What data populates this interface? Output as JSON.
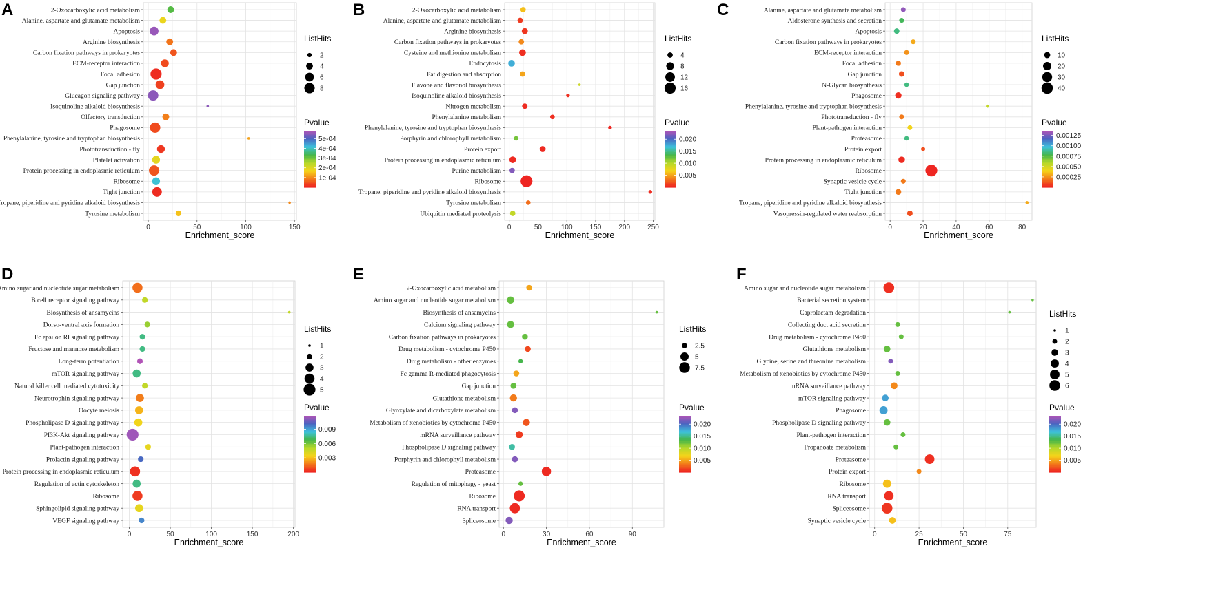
{
  "figure": {
    "background": "#ffffff",
    "grid_color": "#e3e3e3",
    "frame_color": "#d0d0d0"
  },
  "colormap": [
    "#ee2222",
    "#f2771a",
    "#f6d41a",
    "#b7d82a",
    "#45b649",
    "#3ec2dd",
    "#4a63c0",
    "#b154b7"
  ],
  "chart_data": [
    {
      "panel": "A",
      "type": "scatter",
      "xlabel": "Enrichment_score",
      "xlim": [
        -5,
        152
      ],
      "xticks": [
        0,
        50,
        100,
        150
      ],
      "size_title": "ListHits",
      "size_breaks": [
        2,
        4,
        6,
        8
      ],
      "size_range": [
        1,
        10
      ],
      "color_title": "Pvalue",
      "color_ticks": [
        "5e-04",
        "4e-04",
        "3e-04",
        "2e-04",
        "1e-04"
      ],
      "color_tick_vals": [
        0.0005,
        0.0004,
        0.0003,
        0.0002,
        0.0001
      ],
      "color_range": [
        0,
        0.00058
      ],
      "categories": [
        "2-Oxocarboxylic acid metabolism",
        "Alanine, aspartate and glutamate metabolism",
        "Apoptosis",
        "Arginine biosynthesis",
        "Carbon fixation pathways in prokaryotes",
        "ECM-receptor interaction",
        "Focal adhesion",
        "Gap junction",
        "Glucagon signaling pathway",
        "Isoquinoline alkaloid biosynthesis",
        "Olfactory transduction",
        "Phagosome",
        "Phenylalanine, tyrosine and tryptophan biosynthesis",
        "Phototransduction - fly",
        "Platelet activation",
        "Protein processing in endoplasmic reticulum",
        "Ribosome",
        "Tight junction",
        "Tropane, piperidine and pyridine alkaloid biosynthesis",
        "Tyrosine metabolism"
      ],
      "x": [
        23,
        15,
        6,
        22,
        26,
        17,
        8,
        12,
        5,
        61,
        18,
        7,
        103,
        13,
        8,
        6,
        8,
        9,
        145,
        31
      ],
      "size": [
        4,
        4,
        6,
        4,
        4,
        5,
        9,
        6,
        8,
        1,
        4,
        8,
        1,
        5,
        5,
        8,
        5,
        7,
        1,
        3
      ],
      "pvalue": [
        0.00032,
        0.00018,
        0.00056,
        8e-05,
        5e-05,
        4e-05,
        1e-05,
        3e-05,
        0.00055,
        0.00055,
        9e-05,
        4e-05,
        0.00012,
        2e-05,
        0.00019,
        5e-05,
        0.00041,
        1e-05,
        0.0001,
        0.00015
      ]
    },
    {
      "panel": "B",
      "type": "scatter",
      "xlabel": "Enrichment_score",
      "xlim": [
        -8,
        253
      ],
      "xticks": [
        0,
        50,
        100,
        150,
        200,
        250
      ],
      "size_title": "ListHits",
      "size_breaks": [
        4,
        8,
        12,
        16
      ],
      "size_range": [
        1,
        18
      ],
      "color_title": "Pvalue",
      "color_ticks": [
        "0.020",
        "0.015",
        "0.010",
        "0.005"
      ],
      "color_tick_vals": [
        0.02,
        0.015,
        0.01,
        0.005
      ],
      "color_range": [
        0,
        0.0235
      ],
      "categories": [
        "2-Oxocarboxylic acid metabolism",
        "Alanine, aspartate and glutamate metabolism",
        "Arginine biosynthesis",
        "Carbon fixation pathways in prokaryotes",
        "Cysteine and methionine metabolism",
        "Endocytosis",
        "Fat digestion and absorption",
        "Flavone and flavonol biosynthesis",
        "Isoquinoline alkaloid biosynthesis",
        "Nitrogen metabolism",
        "Phenylalanine metabolism",
        "Phenylalanine, tyrosine and tryptophan biosynthesis",
        "Porphyrin and chlorophyll metabolism",
        "Protein export",
        "Protein processing in endoplasmic reticulum",
        "Purine metabolism",
        "Ribosome",
        "Tropane, piperidine and pyridine alkaloid biosynthesis",
        "Tyrosine metabolism",
        "Ubiquitin mediated proteolysis"
      ],
      "x": [
        24,
        19,
        27,
        21,
        23,
        4,
        23,
        122,
        102,
        27,
        75,
        175,
        12,
        58,
        6,
        5,
        30,
        245,
        33,
        6
      ],
      "size": [
        4,
        4,
        5,
        4,
        6,
        6,
        4,
        1,
        2,
        4,
        3,
        2,
        3,
        5,
        6,
        4,
        18,
        2,
        3,
        4
      ],
      "pvalue": [
        0.006,
        0.001,
        0.0008,
        0.004,
        0.0005,
        0.0175,
        0.005,
        0.009,
        0.0006,
        0.0004,
        0.0005,
        0.0002,
        0.012,
        0.0003,
        0.0003,
        0.022,
        0.0001,
        0.0004,
        0.003,
        0.0095
      ]
    },
    {
      "panel": "C",
      "type": "scatter",
      "xlabel": "Enrichment_score",
      "xlim": [
        -3,
        86
      ],
      "xticks": [
        0,
        20,
        40,
        60,
        80
      ],
      "size_title": "ListHits",
      "size_breaks": [
        10,
        20,
        30,
        40
      ],
      "size_range": [
        1,
        44
      ],
      "color_title": "Pvalue",
      "color_ticks": [
        "0.00125",
        "0.00100",
        "0.00075",
        "0.00050",
        "0.00025"
      ],
      "color_tick_vals": [
        0.00125,
        0.001,
        0.00075,
        0.0005,
        0.00025
      ],
      "color_range": [
        0,
        0.00136
      ],
      "categories": [
        "Alanine, aspartate and glutamate metabolism",
        "Aldosterone synthesis and secretion",
        "Apoptosis",
        "Carbon fixation pathways in prokaryotes",
        "ECM-receptor interaction",
        "Focal adhesion",
        "Gap junction",
        "N-Glycan biosynthesis",
        "Phagosome",
        "Phenylalanine, tyrosine and tryptophan biosynthesis",
        "Phototransduction - fly",
        "Plant-pathogen interaction",
        "Proteasome",
        "Protein export",
        "Protein processing in endoplasmic reticulum",
        "Ribosome",
        "Synaptic vesicle cycle",
        "Tight junction",
        "Tropane, piperidine and pyridine alkaloid biosynthesis",
        "Vasopressin-regulated water reabsorption"
      ],
      "x": [
        8,
        7,
        4,
        14,
        10,
        5,
        7,
        10,
        5,
        59,
        7,
        12,
        10,
        20,
        7,
        25,
        8,
        5,
        83,
        12
      ],
      "size": [
        6,
        6,
        8,
        6,
        6,
        7,
        8,
        5,
        11,
        2,
        6,
        6,
        5,
        4,
        12,
        45,
        6,
        9,
        2,
        8
      ],
      "pvalue": [
        0.0013,
        0.0008,
        0.00085,
        0.0003,
        0.00025,
        0.0002,
        0.0001,
        0.00085,
        3e-05,
        0.00055,
        0.0002,
        0.0004,
        0.00085,
        0.0001,
        2e-05,
        1e-05,
        0.0002,
        0.0002,
        0.0003,
        0.0001
      ]
    },
    {
      "panel": "D",
      "type": "scatter",
      "xlabel": "Enrichment_score",
      "xlim": [
        -8,
        202
      ],
      "xticks": [
        0,
        50,
        100,
        150,
        200
      ],
      "size_title": "ListHits",
      "size_breaks": [
        1,
        2,
        3,
        4,
        5
      ],
      "size_range": [
        1,
        5
      ],
      "color_title": "Pvalue",
      "color_ticks": [
        "0.009",
        "0.006",
        "0.003"
      ],
      "color_tick_vals": [
        0.009,
        0.006,
        0.003
      ],
      "color_range": [
        0,
        0.0118
      ],
      "categories": [
        "Amino sugar and nucleotide sugar metabolism",
        "B cell receptor signaling pathway",
        "Biosynthesis of ansamycins",
        "Dorso-ventral axis formation",
        "Fc epsilon RI signaling pathway",
        "Fructose and mannose metabolism",
        "Long-term potentiation",
        "mTOR signaling pathway",
        "Natural killer cell mediated cytotoxicity",
        "Neurotrophin signaling pathway",
        "Oocyte meiosis",
        "Phospholipase D signaling pathway",
        "PI3K-Akt signaling pathway",
        "Plant-pathogen interaction",
        "Prolactin signaling pathway",
        "Protein processing in endoplasmic reticulum",
        "Regulation of actin cytoskeleton",
        "Ribosome",
        "Sphingolipid signaling pathway",
        "VEGF signaling pathway"
      ],
      "x": [
        10,
        19,
        195,
        22,
        16,
        16,
        13,
        9,
        19,
        13,
        12,
        11,
        4,
        23,
        14,
        7,
        9,
        10,
        12,
        15
      ],
      "size": [
        4,
        2,
        1,
        2,
        2,
        2,
        2,
        3,
        2,
        3,
        3,
        3,
        5,
        2,
        2,
        4,
        3,
        4,
        3,
        2
      ],
      "pvalue": [
        0.0015,
        0.0048,
        0.0048,
        0.0055,
        0.0074,
        0.0074,
        0.0118,
        0.0074,
        0.0048,
        0.0018,
        0.0028,
        0.0035,
        0.0115,
        0.0038,
        0.01,
        0.0003,
        0.0074,
        0.0005,
        0.0038,
        0.0095
      ]
    },
    {
      "panel": "E",
      "type": "scatter",
      "xlabel": "Enrichment_score",
      "xlim": [
        -3,
        112
      ],
      "xticks": [
        0,
        30,
        60,
        90
      ],
      "size_title": "ListHits",
      "size_breaks": [
        2.5,
        5.0,
        7.5
      ],
      "size_range": [
        1,
        9
      ],
      "color_title": "Pvalue",
      "color_ticks": [
        "0.020",
        "0.015",
        "0.010",
        "0.005"
      ],
      "color_tick_vals": [
        0.02,
        0.015,
        0.01,
        0.005
      ],
      "color_range": [
        0,
        0.0235
      ],
      "categories": [
        "2-Oxocarboxylic acid metabolism",
        "Amino sugar and nucleotide sugar metabolism",
        "Biosynthesis of ansamycins",
        "Calcium signaling pathway",
        "Carbon fixation pathways in prokaryotes",
        "Drug metabolism - cytochrome P450",
        "Drug metabolism - other enzymes",
        "Fc gamma R-mediated phagocytosis",
        "Gap junction",
        "Glutathione metabolism",
        "Glyoxylate and dicarboxylate metabolism",
        "Metabolism of xenobiotics by cytochrome P450",
        "mRNA surveillance pathway",
        "Phospholipase D signaling pathway",
        "Porphyrin and chlorophyll metabolism",
        "Proteasome",
        "Regulation of mitophagy - yeast",
        "Ribosome",
        "RNA transport",
        "Spliceosome"
      ],
      "x": [
        18,
        5,
        107,
        5,
        15,
        17,
        12,
        9,
        7,
        7,
        8,
        16,
        11,
        6,
        8,
        30,
        12,
        11,
        8,
        4
      ],
      "size": [
        3,
        4,
        1,
        4,
        3,
        3,
        2,
        3,
        3,
        4,
        3,
        4,
        4,
        3,
        3,
        6,
        2,
        8,
        7,
        4
      ],
      "pvalue": [
        0.005,
        0.0125,
        0.0125,
        0.0125,
        0.0125,
        0.0015,
        0.0135,
        0.005,
        0.0125,
        0.0035,
        0.022,
        0.002,
        0.001,
        0.0155,
        0.022,
        0.0003,
        0.0125,
        0.0003,
        0.0003,
        0.022
      ]
    },
    {
      "panel": "F",
      "type": "scatter",
      "xlabel": "Enrichment_score",
      "xlim": [
        -3,
        91
      ],
      "xticks": [
        0,
        25,
        50,
        75
      ],
      "size_title": "ListHits",
      "size_breaks": [
        1,
        2,
        3,
        4,
        5,
        6
      ],
      "size_range": [
        1,
        7
      ],
      "color_title": "Pvalue",
      "color_ticks": [
        "0.020",
        "0.015",
        "0.010",
        "0.005"
      ],
      "color_tick_vals": [
        0.02,
        0.015,
        0.01,
        0.005
      ],
      "color_range": [
        0,
        0.0235
      ],
      "categories": [
        "Amino sugar and nucleotide sugar metabolism",
        "Bacterial secretion system",
        "Caprolactam degradation",
        "Collecting duct acid secretion",
        "Drug metabolism - cytochrome P450",
        "Glutathione metabolism",
        "Glycine, serine and threonine metabolism",
        "Metabolism of xenobiotics by cytochrome P450",
        "mRNA surveillance pathway",
        "mTOR signaling pathway",
        "Phagosome",
        "Phospholipase D signaling pathway",
        "Plant-pathogen interaction",
        "Propanoate metabolism",
        "Proteasome",
        "Protein export",
        "Ribosome",
        "RNA transport",
        "Spliceosome",
        "Synaptic vesicle cycle"
      ],
      "x": [
        8,
        89,
        76,
        13,
        15,
        7,
        9,
        13,
        11,
        6,
        5,
        7,
        16,
        12,
        31,
        25,
        7,
        8,
        7,
        10
      ],
      "size": [
        6,
        1,
        1,
        2,
        2,
        3,
        2,
        2,
        3,
        3,
        4,
        3,
        2,
        2,
        5,
        2,
        4,
        5,
        6,
        3
      ],
      "pvalue": [
        0.0005,
        0.0125,
        0.0125,
        0.0125,
        0.0125,
        0.0125,
        0.022,
        0.0125,
        0.004,
        0.018,
        0.018,
        0.0125,
        0.0125,
        0.0125,
        0.0005,
        0.004,
        0.006,
        0.0005,
        0.0008,
        0.006
      ]
    }
  ]
}
